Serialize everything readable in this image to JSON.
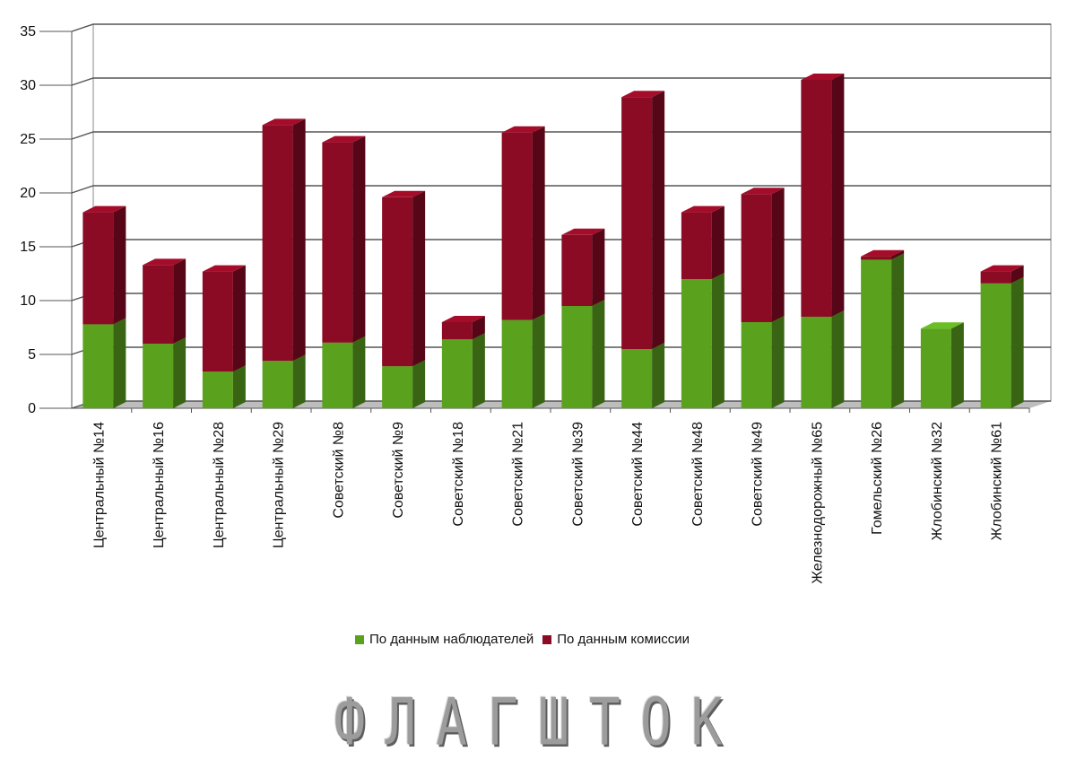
{
  "chart_data": {
    "type": "bar",
    "stacked": true,
    "style": "3d",
    "categories": [
      "Центральный №14",
      "Центральный №16",
      "Центральный №28",
      "Центральный №29",
      "Советский №8",
      "Советский №9",
      "Советский №18",
      "Советский №21",
      "Советский №39",
      "Советский №44",
      "Советский №48",
      "Советский №49",
      "Железнодорожный №65",
      "Гомельский №26",
      "Жлобинский №32",
      "Жлобинский №61"
    ],
    "series": [
      {
        "name": "По данным наблюдателей",
        "color": "#5aa21e",
        "values": [
          7.8,
          6.0,
          3.4,
          4.4,
          6.1,
          3.9,
          6.4,
          8.2,
          9.5,
          5.5,
          12.0,
          8.0,
          8.5,
          13.8,
          7.4,
          11.6
        ]
      },
      {
        "name": "По данным комиссии",
        "color": "#8b0a24",
        "values": [
          10.4,
          7.3,
          9.3,
          21.9,
          18.6,
          15.7,
          1.6,
          17.4,
          6.6,
          23.4,
          6.2,
          11.9,
          22.0,
          0.3,
          0.0,
          1.1
        ]
      }
    ],
    "yticks": [
      "0",
      "5",
      "10",
      "15",
      "20",
      "25",
      "30",
      "35"
    ],
    "ylim": [
      0,
      35
    ],
    "grid": true,
    "legend_position": "bottom"
  },
  "watermark": "ФЛАГШТОК"
}
